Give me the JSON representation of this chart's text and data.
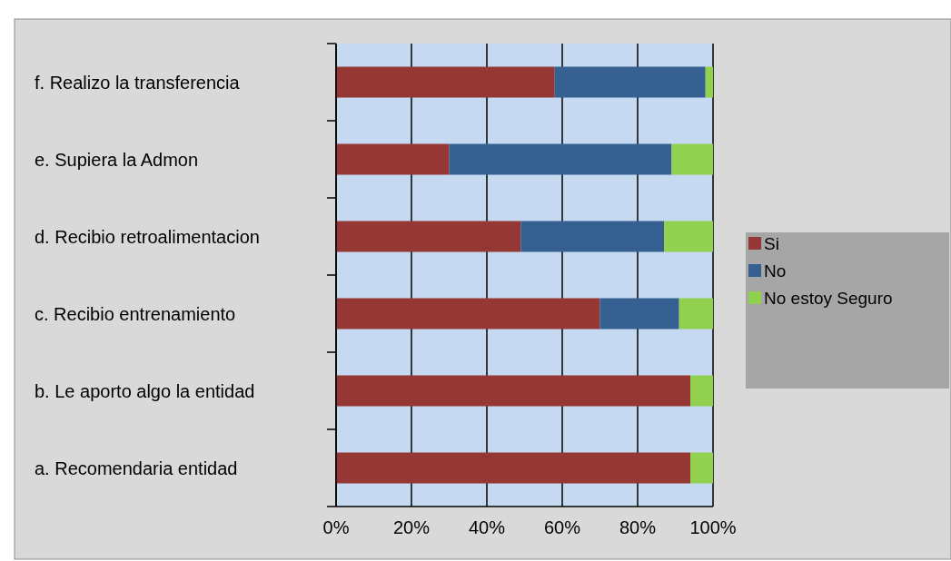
{
  "chart_data": {
    "type": "bar",
    "orientation": "horizontal",
    "stacked": true,
    "categories": [
      "f. Realizo la transferencia",
      "e. Supiera  la Admon",
      "d. Recibio retroalimentacion",
      "c. Recibio entrenamiento",
      "b. Le aporto algo la entidad",
      "a. Recomendaria entidad"
    ],
    "series": [
      {
        "name": "Si",
        "color": "#953735",
        "values": [
          58,
          30,
          49,
          70,
          94,
          94
        ]
      },
      {
        "name": "No",
        "color": "#376092",
        "values": [
          40,
          59,
          38,
          21,
          0,
          0
        ]
      },
      {
        "name": "No estoy Seguro",
        "color": "#92d050",
        "values": [
          2,
          11,
          13,
          9,
          6,
          6
        ]
      }
    ],
    "xlim": [
      0,
      100
    ],
    "xticks": [
      {
        "value": 0,
        "label": "0%"
      },
      {
        "value": 20,
        "label": "20%"
      },
      {
        "value": 40,
        "label": "40%"
      },
      {
        "value": 60,
        "label": "60%"
      },
      {
        "value": 80,
        "label": "80%"
      },
      {
        "value": 100,
        "label": "100%"
      }
    ],
    "grid": "x",
    "legend": "right"
  }
}
